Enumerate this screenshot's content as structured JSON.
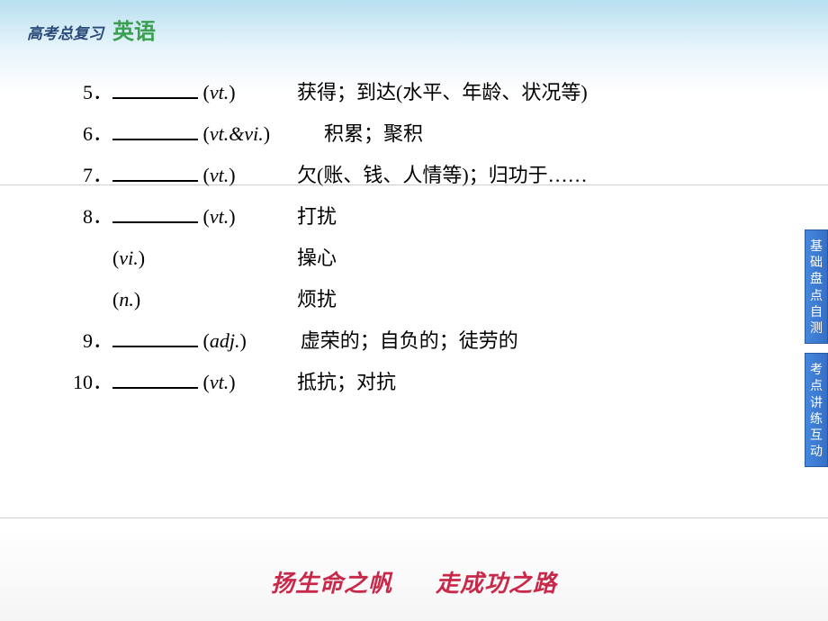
{
  "header": {
    "main": "高考总复习",
    "sub": "英语"
  },
  "rows": [
    {
      "num": "5",
      "pos": "vt.",
      "def": "获得；到达(水平、年龄、状况等)"
    },
    {
      "num": "6",
      "pos": "vt.&vi.",
      "def": "积累；聚积"
    },
    {
      "num": "7",
      "pos": "vt.",
      "def": "欠(账、钱、人情等)；归功于……"
    },
    {
      "num": "8",
      "pos": "vt.",
      "def": "打扰"
    },
    {
      "num": "",
      "pos": "vi.",
      "def": "操心",
      "noBlank": true
    },
    {
      "num": "",
      "pos": "n.",
      "def": "烦扰",
      "noBlank": true
    },
    {
      "num": "9",
      "pos": "adj.",
      "def": "虚荣的；自负的；徒劳的"
    },
    {
      "num": "10",
      "pos": "vt.",
      "def": "抵抗；对抗"
    }
  ],
  "tabs": {
    "t1": "基础盘点自测",
    "t2": "考点讲练互动"
  },
  "footer": {
    "left": "扬生命之帆",
    "right": "走成功之路"
  },
  "style": {
    "header_main_color": "#2a4a7a",
    "header_sub_color": "#3aa050",
    "tab_bg": "#3670c5",
    "footer_color": "#c8284a",
    "body_fontsize": 22
  }
}
